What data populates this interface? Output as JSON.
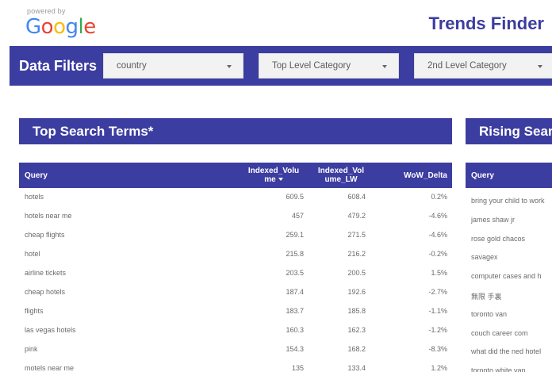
{
  "header": {
    "powered_by": "powered by",
    "logo_letters": [
      {
        "char": "G",
        "color": "#4285F4"
      },
      {
        "char": "o",
        "color": "#EA4335"
      },
      {
        "char": "o",
        "color": "#FBBC05"
      },
      {
        "char": "g",
        "color": "#4285F4"
      },
      {
        "char": "l",
        "color": "#34A853"
      },
      {
        "char": "e",
        "color": "#EA4335"
      }
    ],
    "title": "Trends Finder"
  },
  "filters": {
    "title": "Data Filters",
    "dropdowns": [
      {
        "label": "country"
      },
      {
        "label": "Top Level Category"
      },
      {
        "label": "2nd Level Category"
      }
    ]
  },
  "top_search": {
    "title": "Top Search Terms*",
    "columns": {
      "query": "Query",
      "volume_line1": "Indexed_Volu",
      "volume_line2": "me",
      "volume_lw_line1": "Indexed_Vol",
      "volume_lw_line2": "ume_LW",
      "delta": "WoW_Delta"
    },
    "rows": [
      {
        "query": "hotels",
        "volume": "609.5",
        "volume_lw": "608.4",
        "delta": "0.2%"
      },
      {
        "query": "hotels near me",
        "volume": "457",
        "volume_lw": "479.2",
        "delta": "-4.6%"
      },
      {
        "query": "cheap flights",
        "volume": "259.1",
        "volume_lw": "271.5",
        "delta": "-4.6%"
      },
      {
        "query": "hotel",
        "volume": "215.8",
        "volume_lw": "216.2",
        "delta": "-0.2%"
      },
      {
        "query": "airline tickets",
        "volume": "203.5",
        "volume_lw": "200.5",
        "delta": "1.5%"
      },
      {
        "query": "cheap hotels",
        "volume": "187.4",
        "volume_lw": "192.6",
        "delta": "-2.7%"
      },
      {
        "query": "flights",
        "volume": "183.7",
        "volume_lw": "185.8",
        "delta": "-1.1%"
      },
      {
        "query": "las vegas hotels",
        "volume": "160.3",
        "volume_lw": "162.3",
        "delta": "-1.2%"
      },
      {
        "query": "pink",
        "volume": "154.3",
        "volume_lw": "168.2",
        "delta": "-8.3%"
      },
      {
        "query": "motels near me",
        "volume": "135",
        "volume_lw": "133.4",
        "delta": "1.2%"
      }
    ]
  },
  "rising_search": {
    "title": "Rising Sear",
    "columns": {
      "query": "Query"
    },
    "rows": [
      {
        "query": "bring your child to work"
      },
      {
        "query": "james shaw jr"
      },
      {
        "query": "rose gold chacos"
      },
      {
        "query": "savagex"
      },
      {
        "query": "computer cases and h"
      },
      {
        "query": "無限 手裏"
      },
      {
        "query": "toronto van"
      },
      {
        "query": "couch career com"
      },
      {
        "query": "what did the ned hotel"
      },
      {
        "query": "toronto white van"
      }
    ]
  }
}
